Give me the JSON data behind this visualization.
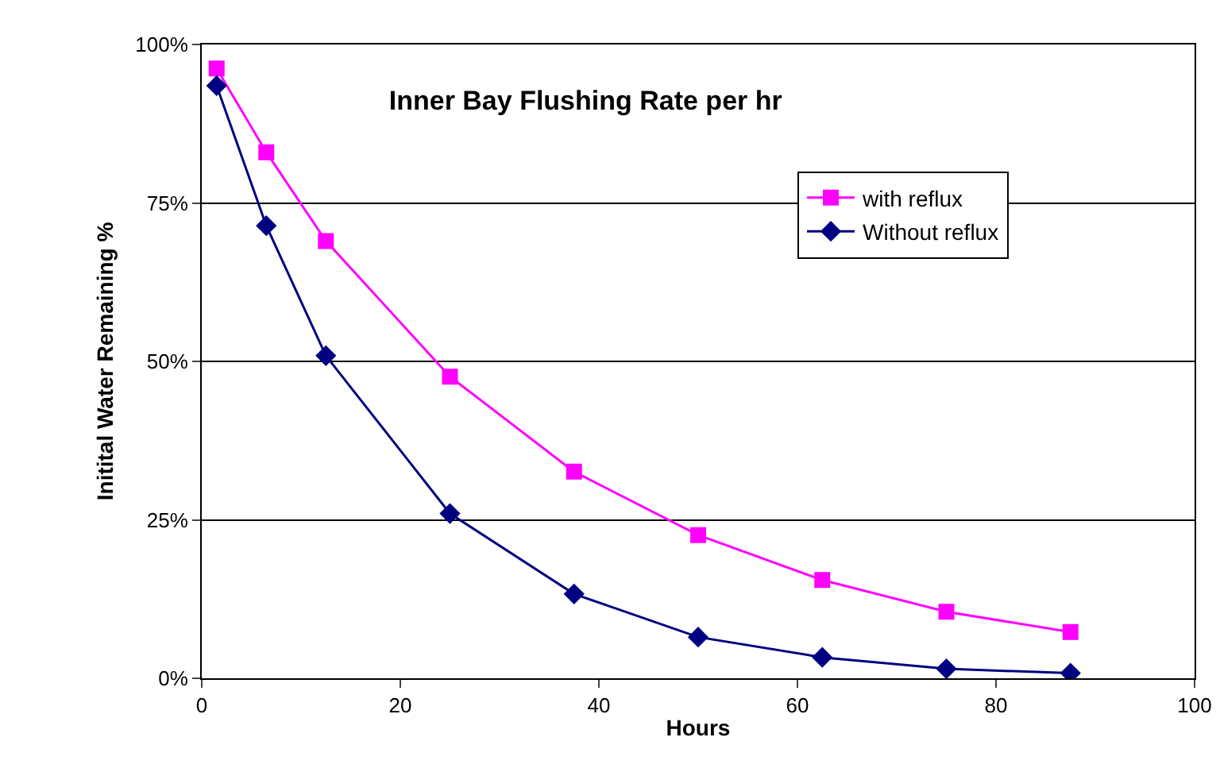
{
  "chart_data": {
    "type": "line",
    "title": "Inner Bay Flushing Rate per hr",
    "xlabel": "Hours",
    "ylabel": "Initital Water Remaining %",
    "xlim": [
      0,
      100
    ],
    "xticks": [
      0,
      20,
      40,
      60,
      80,
      100
    ],
    "ylim": [
      0,
      100
    ],
    "yticks": [
      {
        "value": 0,
        "label": "0%"
      },
      {
        "value": 25,
        "label": "25%"
      },
      {
        "value": 50,
        "label": "50%"
      },
      {
        "value": 75,
        "label": "75%"
      },
      {
        "value": 100,
        "label": "100%"
      }
    ],
    "grid": "y",
    "legend": "top right",
    "x": [
      1.5,
      6.5,
      12.5,
      25,
      37.5,
      50,
      62.5,
      75,
      87.5
    ],
    "series": [
      {
        "name": "with reflux",
        "color": "#ff00ff",
        "marker": "square",
        "values": [
          96.2,
          83,
          69,
          47.6,
          32.6,
          22.6,
          15.5,
          10.5,
          7.3
        ]
      },
      {
        "name": "Without reflux",
        "color": "#000080",
        "marker": "diamond",
        "values": [
          93.5,
          71.4,
          50.9,
          26,
          13.3,
          6.5,
          3.3,
          1.5,
          0.8
        ]
      }
    ]
  }
}
